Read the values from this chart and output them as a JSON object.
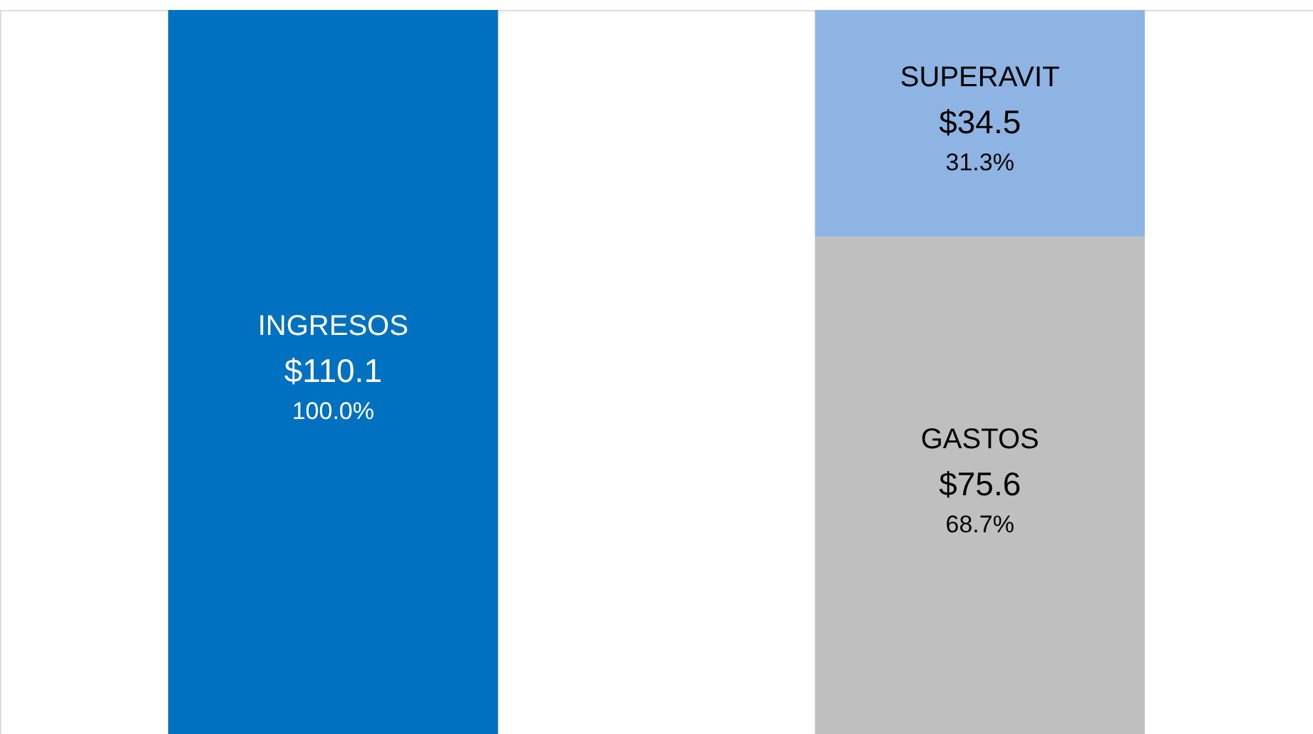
{
  "chart_data": {
    "type": "bar",
    "stacked": true,
    "categories": [
      null,
      null
    ],
    "ylim": [
      0,
      110.1
    ],
    "series": [
      {
        "name": "INGRESOS",
        "color": "#0070c0",
        "values": [
          110.1,
          null
        ],
        "value_labels": [
          "$110.1",
          null
        ]
      },
      {
        "name": "GASTOS",
        "color": "#bfbfbf",
        "values": [
          null,
          75.6
        ],
        "value_labels": [
          null,
          "$75.6"
        ]
      },
      {
        "name": "SUPERAVIT",
        "color": "#8eb4e3",
        "values": [
          null,
          34.5
        ],
        "value_labels": [
          null,
          "$34.5"
        ]
      }
    ],
    "annotations": [
      "100.0%",
      "68.7%",
      "31.3%"
    ]
  }
}
